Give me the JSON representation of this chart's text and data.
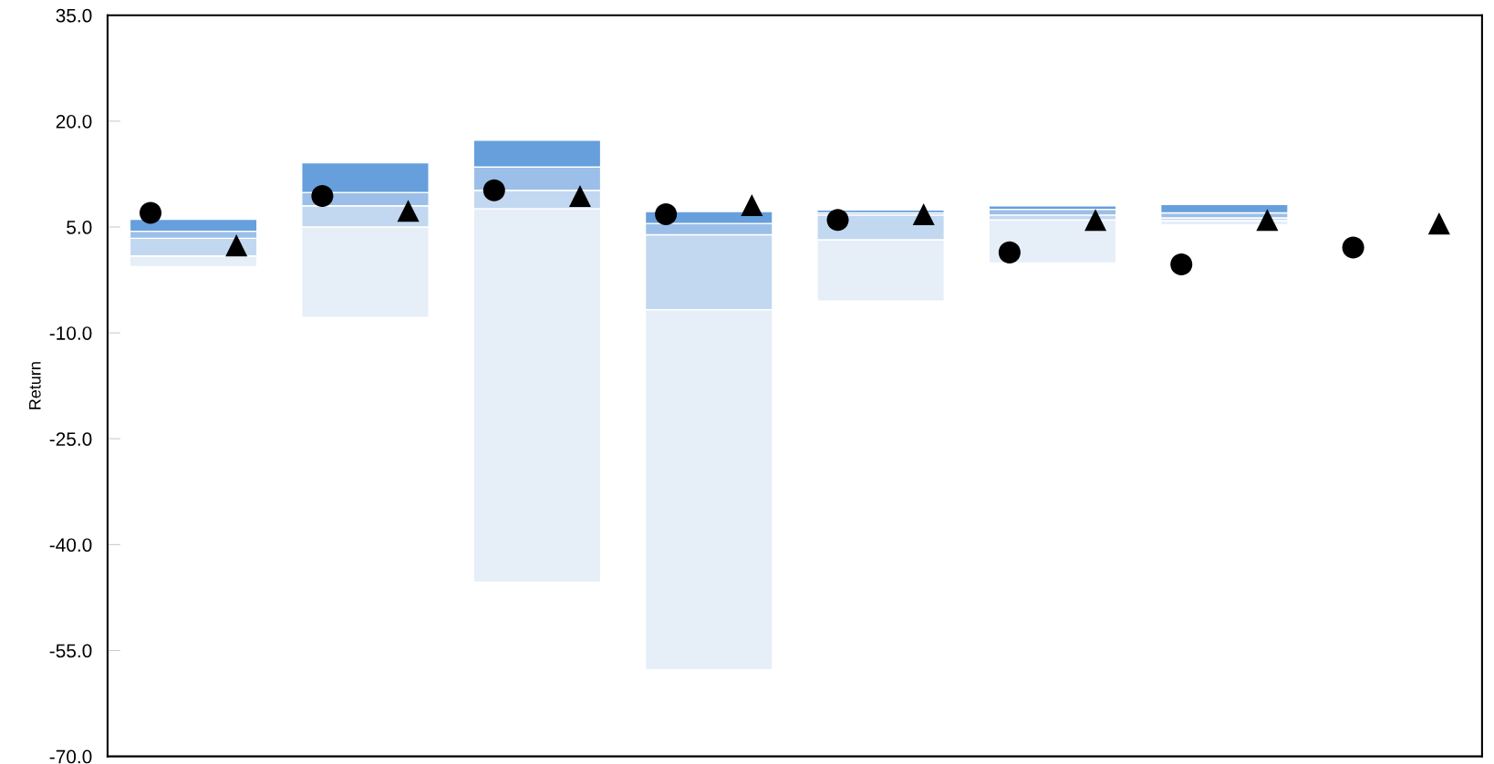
{
  "chart_data": {
    "type": "bar",
    "ylabel": "Return",
    "categories": [
      null,
      null,
      null,
      null,
      null,
      null,
      null,
      null
    ],
    "series": [
      {
        "color": "#e6eef8",
        "base": [
          -0.6,
          -7.8,
          -45.3,
          -57.7,
          -5.5,
          -0.1,
          5.3,
          null
        ],
        "values": [
          1.5,
          12.8,
          52.9,
          51.0,
          8.7,
          6.1,
          0.6,
          null
        ]
      },
      {
        "color": "#c2d8f0",
        "base": [
          0.9,
          5.0,
          7.6,
          -6.7,
          3.2,
          6.0,
          5.9,
          null
        ],
        "values": [
          2.5,
          3.0,
          2.6,
          10.6,
          3.5,
          0.7,
          0.4,
          null
        ]
      },
      {
        "color": "#9bbfe8",
        "base": [
          3.4,
          8.0,
          10.2,
          3.9,
          6.7,
          6.7,
          6.3,
          null
        ],
        "values": [
          1.0,
          1.9,
          3.3,
          1.6,
          0.3,
          0.8,
          0.7,
          null
        ]
      },
      {
        "color": "#669fdc",
        "base": [
          4.4,
          9.9,
          13.5,
          5.5,
          7.0,
          7.5,
          7.0,
          null
        ],
        "values": [
          1.7,
          4.2,
          3.8,
          1.7,
          0.4,
          0.5,
          1.2,
          null
        ]
      },
      {
        "type": "scatter",
        "marker": "circle",
        "color": "#000000",
        "values": [
          7.0,
          9.4,
          10.2,
          6.8,
          6.0,
          1.4,
          -0.3,
          2.1
        ]
      },
      {
        "type": "scatter",
        "marker": "triangle",
        "color": "#000000",
        "values": [
          2.4,
          7.3,
          9.4,
          8.1,
          6.8,
          6.0,
          6.0,
          5.5
        ]
      }
    ],
    "ylim": [
      -70,
      35
    ],
    "yticks": [
      {
        "value": -70,
        "label": "-70.0"
      },
      {
        "value": -55,
        "label": "-55.0"
      },
      {
        "value": -40,
        "label": "-40.0"
      },
      {
        "value": -25,
        "label": "-25.0"
      },
      {
        "value": -10,
        "label": "-10.0"
      },
      {
        "value": 5,
        "label": "5.0"
      },
      {
        "value": 20,
        "label": "20.0"
      },
      {
        "value": 35,
        "label": "35.0"
      }
    ],
    "tick_labels": "y",
    "grid": false,
    "legend": false
  }
}
